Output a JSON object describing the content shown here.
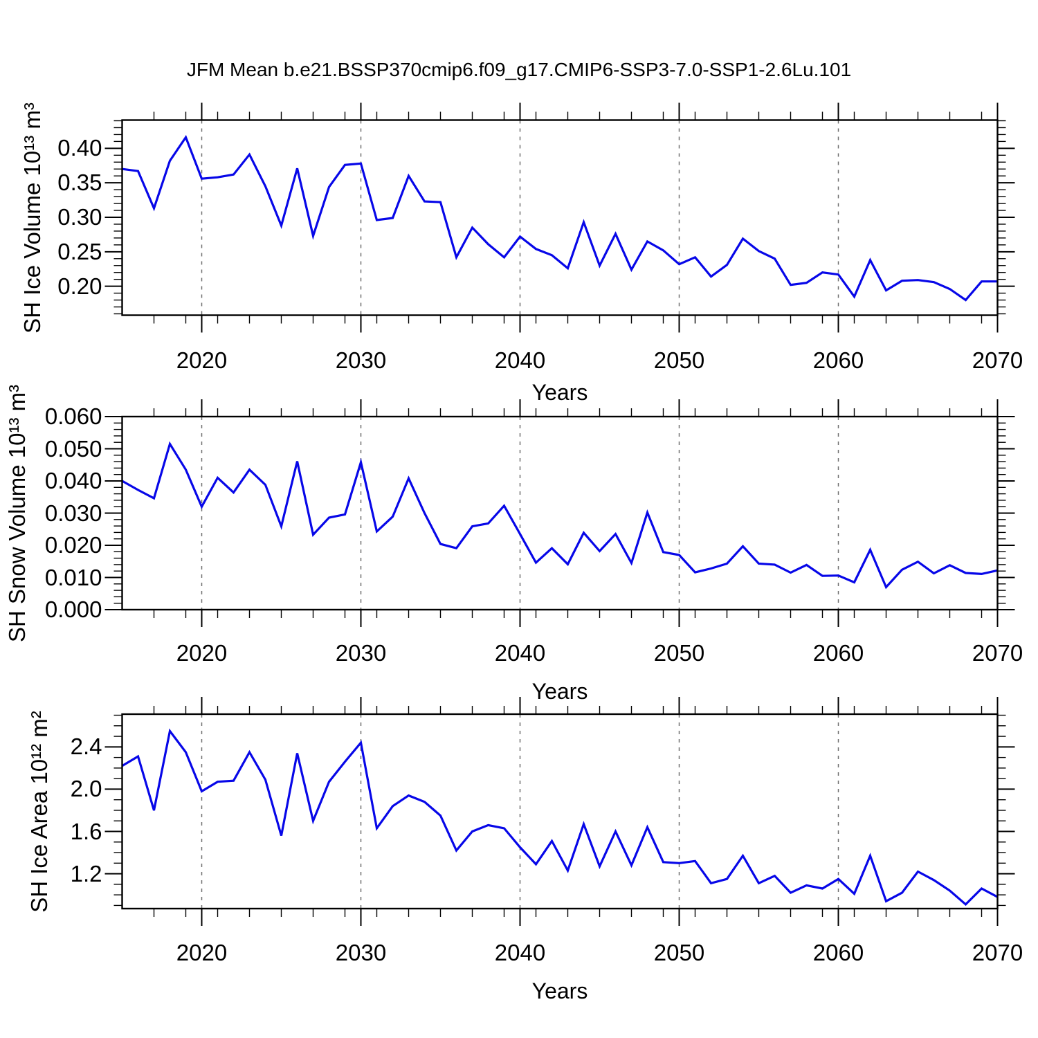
{
  "title": "JFM Mean b.e21.BSSP370cmip6.f09_g17.CMIP6-SSP3-7.0-SSP1-2.6Lu.101",
  "line_color": "#0707e8",
  "gridline_color": "#707070",
  "axis_color": "#000000",
  "x_axis": {
    "label": "Years",
    "min": 2015,
    "max": 2070,
    "major_ticks": [
      2020,
      2030,
      2040,
      2050,
      2060,
      2070
    ],
    "tick_labels": [
      "2020",
      "2030",
      "2040",
      "2050",
      "2060",
      "2070"
    ],
    "minor_step": 2,
    "gridlines": [
      2020,
      2030,
      2040,
      2050,
      2060
    ]
  },
  "chart_data": [
    {
      "name": "sh-ice-volume",
      "type": "line",
      "ylabel": "SH Ice Volume 10¹³ m³",
      "xlabel": "Years",
      "ylim": [
        0.158,
        0.441
      ],
      "ymajor": [
        0.2,
        0.25,
        0.3,
        0.35,
        0.4
      ],
      "ytick_labels": [
        "0.20",
        "0.25",
        "0.30",
        "0.35",
        "0.40"
      ],
      "yminor_step": 0.01,
      "x": [
        2015,
        2016,
        2017,
        2018,
        2019,
        2020,
        2021,
        2022,
        2023,
        2024,
        2025,
        2026,
        2027,
        2028,
        2029,
        2030,
        2031,
        2032,
        2033,
        2034,
        2035,
        2036,
        2037,
        2038,
        2039,
        2040,
        2041,
        2042,
        2043,
        2044,
        2045,
        2046,
        2047,
        2048,
        2049,
        2050,
        2051,
        2052,
        2053,
        2054,
        2055,
        2056,
        2057,
        2058,
        2059,
        2060,
        2061,
        2062,
        2063,
        2064,
        2065,
        2066,
        2067,
        2068,
        2069,
        2070
      ],
      "values": [
        0.37,
        0.367,
        0.313,
        0.382,
        0.416,
        0.356,
        0.358,
        0.362,
        0.391,
        0.345,
        0.288,
        0.371,
        0.273,
        0.344,
        0.376,
        0.378,
        0.296,
        0.299,
        0.36,
        0.323,
        0.322,
        0.242,
        0.285,
        0.261,
        0.242,
        0.272,
        0.254,
        0.245,
        0.226,
        0.293,
        0.23,
        0.276,
        0.224,
        0.265,
        0.252,
        0.232,
        0.242,
        0.214,
        0.231,
        0.269,
        0.251,
        0.24,
        0.202,
        0.205,
        0.22,
        0.217,
        0.185,
        0.238,
        0.194,
        0.208,
        0.209,
        0.206,
        0.196,
        0.18,
        0.207,
        0.207
      ]
    },
    {
      "name": "sh-snow-volume",
      "type": "line",
      "ylabel": "SH Snow Volume 10¹³ m³",
      "xlabel": "Years",
      "ylim": [
        0.0,
        0.06
      ],
      "ymajor": [
        0.0,
        0.01,
        0.02,
        0.03,
        0.04,
        0.05,
        0.06
      ],
      "ytick_labels": [
        "0.000",
        "0.010",
        "0.020",
        "0.030",
        "0.040",
        "0.050",
        "0.060"
      ],
      "yminor_step": 0.002,
      "x": [
        2015,
        2016,
        2017,
        2018,
        2019,
        2020,
        2021,
        2022,
        2023,
        2024,
        2025,
        2026,
        2027,
        2028,
        2029,
        2030,
        2031,
        2032,
        2033,
        2034,
        2035,
        2036,
        2037,
        2038,
        2039,
        2040,
        2041,
        2042,
        2043,
        2044,
        2045,
        2046,
        2047,
        2048,
        2049,
        2050,
        2051,
        2052,
        2053,
        2054,
        2055,
        2056,
        2057,
        2058,
        2059,
        2060,
        2061,
        2062,
        2063,
        2064,
        2065,
        2066,
        2067,
        2068,
        2069,
        2070
      ],
      "values": [
        0.04,
        0.0372,
        0.0346,
        0.0515,
        0.0435,
        0.032,
        0.041,
        0.0364,
        0.0435,
        0.0388,
        0.0259,
        0.0461,
        0.0233,
        0.0286,
        0.0296,
        0.0458,
        0.0243,
        0.0289,
        0.0408,
        0.03,
        0.0204,
        0.0191,
        0.0259,
        0.0268,
        0.0323,
        0.0235,
        0.0146,
        0.0191,
        0.0141,
        0.0239,
        0.0182,
        0.0235,
        0.0145,
        0.0302,
        0.0179,
        0.017,
        0.0116,
        0.0128,
        0.0143,
        0.0197,
        0.0143,
        0.014,
        0.0115,
        0.0139,
        0.0105,
        0.0106,
        0.0085,
        0.0186,
        0.007,
        0.0124,
        0.0149,
        0.0113,
        0.0138,
        0.0114,
        0.0111,
        0.0122
      ]
    },
    {
      "name": "sh-ice-area",
      "type": "line",
      "ylabel": "SH Ice Area 10¹² m²",
      "xlabel": "Years",
      "ylim": [
        0.87,
        2.71
      ],
      "ymajor": [
        1.2,
        1.6,
        2.0,
        2.4
      ],
      "ytick_labels": [
        "1.2",
        "1.6",
        "2.0",
        "2.4"
      ],
      "yminor_step": 0.1,
      "x": [
        2015,
        2016,
        2017,
        2018,
        2019,
        2020,
        2021,
        2022,
        2023,
        2024,
        2025,
        2026,
        2027,
        2028,
        2029,
        2030,
        2031,
        2032,
        2033,
        2034,
        2035,
        2036,
        2037,
        2038,
        2039,
        2040,
        2041,
        2042,
        2043,
        2044,
        2045,
        2046,
        2047,
        2048,
        2049,
        2050,
        2051,
        2052,
        2053,
        2054,
        2055,
        2056,
        2057,
        2058,
        2059,
        2060,
        2061,
        2062,
        2063,
        2064,
        2065,
        2066,
        2067,
        2068,
        2069,
        2070
      ],
      "values": [
        2.22,
        2.31,
        1.8,
        2.55,
        2.35,
        1.98,
        2.07,
        2.08,
        2.35,
        2.09,
        1.56,
        2.34,
        1.7,
        2.07,
        2.26,
        2.44,
        1.63,
        1.84,
        1.94,
        1.88,
        1.75,
        1.42,
        1.6,
        1.66,
        1.63,
        1.45,
        1.29,
        1.51,
        1.23,
        1.67,
        1.27,
        1.6,
        1.28,
        1.64,
        1.31,
        1.3,
        1.32,
        1.11,
        1.15,
        1.37,
        1.11,
        1.18,
        1.02,
        1.09,
        1.06,
        1.15,
        1.01,
        1.37,
        0.94,
        1.02,
        1.22,
        1.14,
        1.04,
        0.91,
        1.06,
        0.98
      ]
    }
  ]
}
